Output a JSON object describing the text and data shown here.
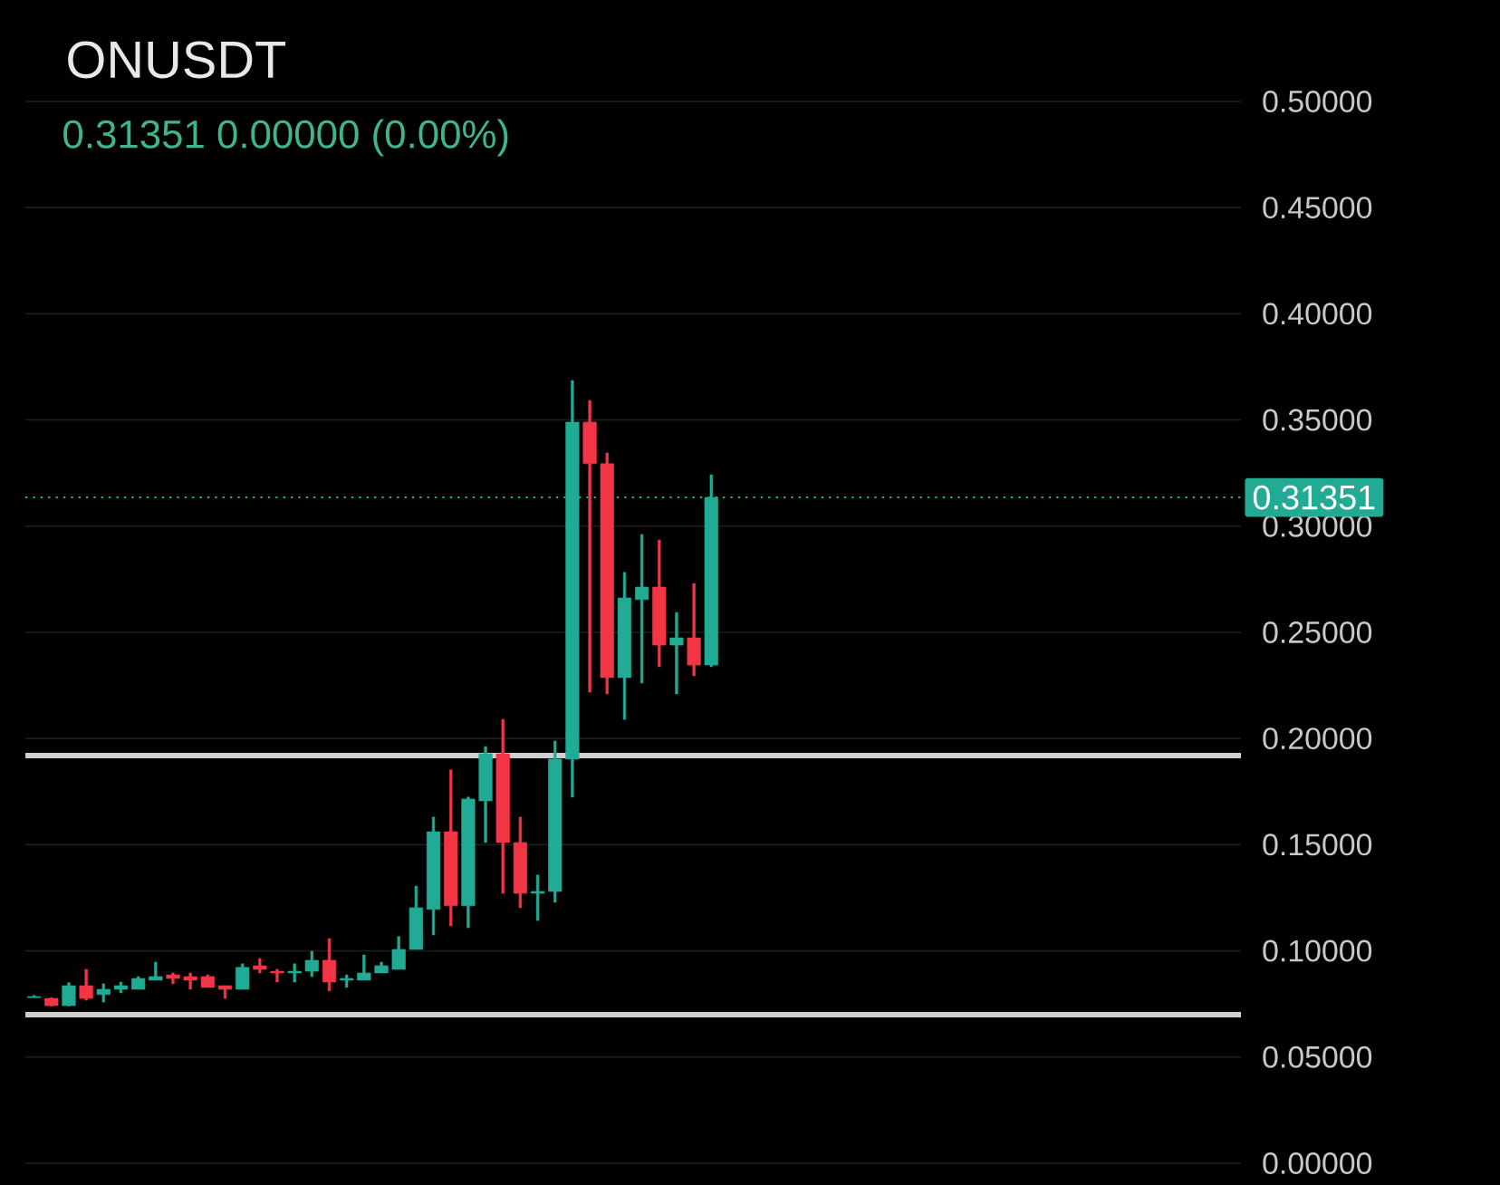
{
  "chart_data": {
    "type": "candlestick",
    "title": "ONUSDT",
    "subtitle": "0.31351  0.00000 (0.00%)",
    "categories": [
      null,
      null,
      null,
      null,
      null,
      null,
      null,
      null,
      null,
      null,
      null,
      null,
      null,
      null,
      null,
      null,
      null,
      null,
      null,
      null,
      null,
      null,
      null,
      null,
      null,
      null,
      null,
      null,
      null,
      null,
      null,
      null,
      null,
      null,
      null,
      null,
      null,
      null,
      null,
      null,
      null,
      null,
      null,
      null,
      null,
      null,
      null,
      null,
      null,
      null,
      null,
      null,
      null,
      null,
      null,
      null,
      null,
      null,
      null,
      null,
      null,
      null,
      null,
      null,
      null,
      null,
      null,
      null,
      null,
      null
    ],
    "ohlc": [
      [
        0.078,
        0.079,
        0.078,
        0.0785
      ],
      [
        0.0776,
        0.078,
        0.074,
        0.0742
      ],
      [
        0.0742,
        0.085,
        0.074,
        0.0836
      ],
      [
        0.0836,
        0.0913,
        0.0768,
        0.0776
      ],
      [
        0.0794,
        0.0845,
        0.0759,
        0.0819
      ],
      [
        0.0819,
        0.0853,
        0.0802,
        0.0836
      ],
      [
        0.0819,
        0.0879,
        0.0819,
        0.087
      ],
      [
        0.0862,
        0.0947,
        0.0862,
        0.0879
      ],
      [
        0.0887,
        0.0896,
        0.0845,
        0.087
      ],
      [
        0.0879,
        0.0896,
        0.0819,
        0.0862
      ],
      [
        0.0879,
        0.0887,
        0.0828,
        0.0828
      ],
      [
        0.0836,
        0.0836,
        0.0776,
        0.0819
      ],
      [
        0.0819,
        0.0939,
        0.0819,
        0.0922
      ],
      [
        0.093,
        0.0964,
        0.0896,
        0.0913
      ],
      [
        0.0904,
        0.0913,
        0.0853,
        0.0896
      ],
      [
        0.0896,
        0.0939,
        0.0853,
        0.0904
      ],
      [
        0.0904,
        0.0998,
        0.0879,
        0.0956
      ],
      [
        0.0956,
        0.1058,
        0.0811,
        0.0853
      ],
      [
        0.0862,
        0.0887,
        0.0828,
        0.087
      ],
      [
        0.0862,
        0.0981,
        0.0862,
        0.0896
      ],
      [
        0.0896,
        0.0947,
        0.0896,
        0.093
      ],
      [
        0.0913,
        0.1067,
        0.0913,
        0.1007
      ],
      [
        0.1007,
        0.1305,
        0.1007,
        0.1203
      ],
      [
        0.1195,
        0.163,
        0.1075,
        0.1561
      ],
      [
        0.1561,
        0.1852,
        0.1118,
        0.1212
      ],
      [
        0.1212,
        0.1724,
        0.1109,
        0.1715
      ],
      [
        0.1706,
        0.1962,
        0.151,
        0.1928
      ],
      [
        0.1928,
        0.209,
        0.1271,
        0.151
      ],
      [
        0.151,
        0.163,
        0.1203,
        0.1271
      ],
      [
        0.1271,
        0.1357,
        0.1143,
        0.128
      ],
      [
        0.128,
        0.1988,
        0.1229,
        0.1903
      ],
      [
        0.1903,
        0.3686,
        0.1724,
        0.349
      ],
      [
        0.349,
        0.3592,
        0.2218,
        0.3294
      ],
      [
        0.3294,
        0.3345,
        0.221,
        0.2287
      ],
      [
        0.2287,
        0.2782,
        0.209,
        0.2662
      ],
      [
        0.2654,
        0.2961,
        0.2261,
        0.2713
      ],
      [
        0.2713,
        0.2935,
        0.2338,
        0.244
      ],
      [
        0.244,
        0.2594,
        0.221,
        0.2474
      ],
      [
        0.2474,
        0.273,
        0.2295,
        0.2346
      ],
      [
        0.2346,
        0.3242,
        0.2338,
        0.31351
      ],
      null,
      null,
      null,
      null,
      null,
      null,
      null,
      null,
      null,
      null,
      null,
      null,
      null,
      null,
      null,
      null,
      null,
      null,
      null,
      null,
      null,
      null,
      null,
      null,
      null,
      null,
      null,
      null,
      null,
      null
    ],
    "colors": [
      "#22ab94",
      "#f23645",
      "#22ab94",
      "#f23645",
      "#22ab94",
      "#22ab94",
      "#22ab94",
      "#22ab94",
      "#f23645",
      "#f23645",
      "#f23645",
      "#f23645",
      "#22ab94",
      "#f23645",
      "#f23645",
      "#22ab94",
      "#22ab94",
      "#f23645",
      "#22ab94",
      "#22ab94",
      "#22ab94",
      "#22ab94",
      "#22ab94",
      "#22ab94",
      "#f23645",
      "#22ab94",
      "#22ab94",
      "#f23645",
      "#f23645",
      "#22ab94",
      "#22ab94",
      "#22ab94",
      "#f23645",
      "#f23645",
      "#22ab94",
      "#22ab94",
      "#f23645",
      "#22ab94",
      "#f23645",
      "#22ab94",
      null,
      null,
      null,
      null,
      null,
      null,
      null,
      null,
      null,
      null,
      null,
      null,
      null,
      null,
      null,
      null,
      null,
      null,
      null,
      null,
      null,
      null,
      null,
      null,
      null,
      null,
      null,
      null,
      null,
      null
    ],
    "ylim": [
      0,
      0.5
    ],
    "yticks": [
      {
        "value": 0.0,
        "label": "0.00000"
      },
      {
        "value": 0.05,
        "label": "0.05000"
      },
      {
        "value": 0.1,
        "label": "0.10000"
      },
      {
        "value": 0.15,
        "label": "0.15000"
      },
      {
        "value": 0.2,
        "label": "0.20000"
      },
      {
        "value": 0.25,
        "label": "0.25000"
      },
      {
        "value": 0.3,
        "label": "0.30000"
      },
      {
        "value": 0.35,
        "label": "0.35000"
      },
      {
        "value": 0.4,
        "label": "0.40000"
      },
      {
        "value": 0.45,
        "label": "0.45000"
      },
      {
        "value": 0.5,
        "label": "0.50000"
      }
    ],
    "ref_lines": [
      {
        "axis": "y",
        "value": 0.192,
        "color": "#cfcfcf",
        "line_style": "solid"
      },
      {
        "axis": "y",
        "value": 0.07,
        "color": "#cfcfcf",
        "line_style": "solid"
      },
      {
        "axis": "y",
        "value": 0.31351,
        "label": "0.31351",
        "color": "#22ab94",
        "line_style": "dotted"
      }
    ],
    "grid": "y",
    "tick_labels": "y"
  }
}
